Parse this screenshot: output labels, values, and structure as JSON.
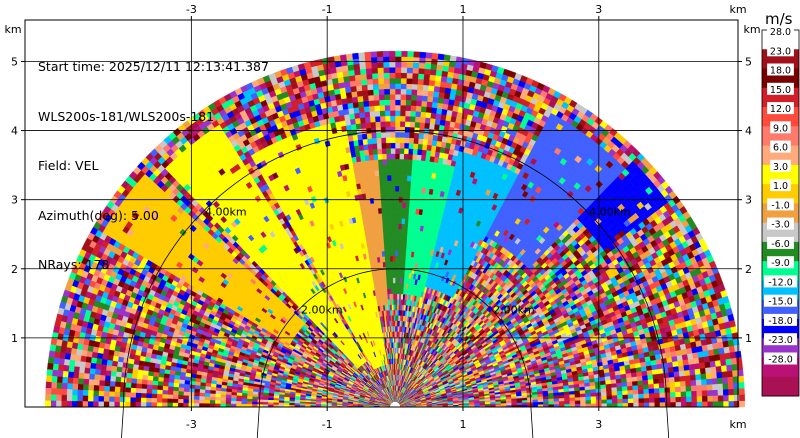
{
  "info": {
    "start_time": "Start time: 2025/12/11 12:13:41.387",
    "station": "WLS200s-181/WLS200s-181",
    "field": "Field: VEL",
    "azimuth": "Azimuth(deg): 5.00",
    "nrays": "NRays: 178"
  },
  "chart_data": {
    "type": "heatmap",
    "projection": "polar-sector (RHI-style scan)",
    "x_unit": "km",
    "y_unit": "km",
    "xlim": [
      -5.45,
      5.05
    ],
    "ylim": [
      0,
      5.6
    ],
    "x_ticks": [
      -3,
      -1,
      1,
      3
    ],
    "y_ticks": [
      1,
      2,
      3,
      4,
      5
    ],
    "range_rings_km": [
      2,
      4
    ],
    "range_ring_labels": [
      "2.00km",
      "4.00km"
    ],
    "max_range_km": 5.15,
    "origin_km": [
      0,
      0
    ],
    "colorbar": {
      "unit": "m/s",
      "levels": [
        "28.0",
        "23.0",
        "18.0",
        "15.0",
        "12.0",
        "9.0",
        "6.0",
        "3.0",
        "1.0",
        "-1.0",
        "-3.0",
        "-6.0",
        "-9.0",
        "-12.0",
        "-15.0",
        "-18.0",
        "-23.0",
        "-28.0"
      ],
      "colors": [
        "#ffffff",
        "#a0101a",
        "#7a0000",
        "#d21e28",
        "#ff4a3c",
        "#ff7a6a",
        "#ffaa7a",
        "#ffff00",
        "#ffcc00",
        "#f0a040",
        "#c8c8c8",
        "#228b22",
        "#00ff90",
        "#00c0ff",
        "#4060ff",
        "#0000ff",
        "#9933cc",
        "#bb1177",
        "#aa1155"
      ]
    },
    "regions": [
      {
        "name": "positive-band",
        "azimuth_deg": [
          100,
          120
        ],
        "range_km": [
          0.6,
          4.2
        ],
        "level": "6.0"
      },
      {
        "name": "positive-band",
        "azimuth_deg": [
          122,
          134
        ],
        "range_km": [
          0.8,
          4.8
        ],
        "level": "6.0"
      },
      {
        "name": "weak-band",
        "azimuth_deg": [
          94,
          101
        ],
        "range_km": [
          1.5,
          3.6
        ],
        "level": "1.0"
      },
      {
        "name": "green-band",
        "azimuth_deg": [
          86,
          94
        ],
        "range_km": [
          1.6,
          3.6
        ],
        "level": "-3.0"
      },
      {
        "name": "cyan-band",
        "azimuth_deg": [
          76,
          86
        ],
        "range_km": [
          1.6,
          3.6
        ],
        "level": "-6.0"
      },
      {
        "name": "sky-band",
        "azimuth_deg": [
          62,
          76
        ],
        "range_km": [
          1.8,
          3.8
        ],
        "level": "-9.0"
      },
      {
        "name": "blue-band",
        "azimuth_deg": [
          46,
          62
        ],
        "range_km": [
          2.8,
          4.8
        ],
        "level": "-12.0"
      },
      {
        "name": "blue-band",
        "azimuth_deg": [
          36,
          46
        ],
        "range_km": [
          3.8,
          5.0
        ],
        "level": "-15.0"
      },
      {
        "name": "yellow-band",
        "azimuth_deg": [
          138,
          150
        ],
        "range_km": [
          1.8,
          5.0
        ],
        "level": "3.0"
      }
    ]
  }
}
